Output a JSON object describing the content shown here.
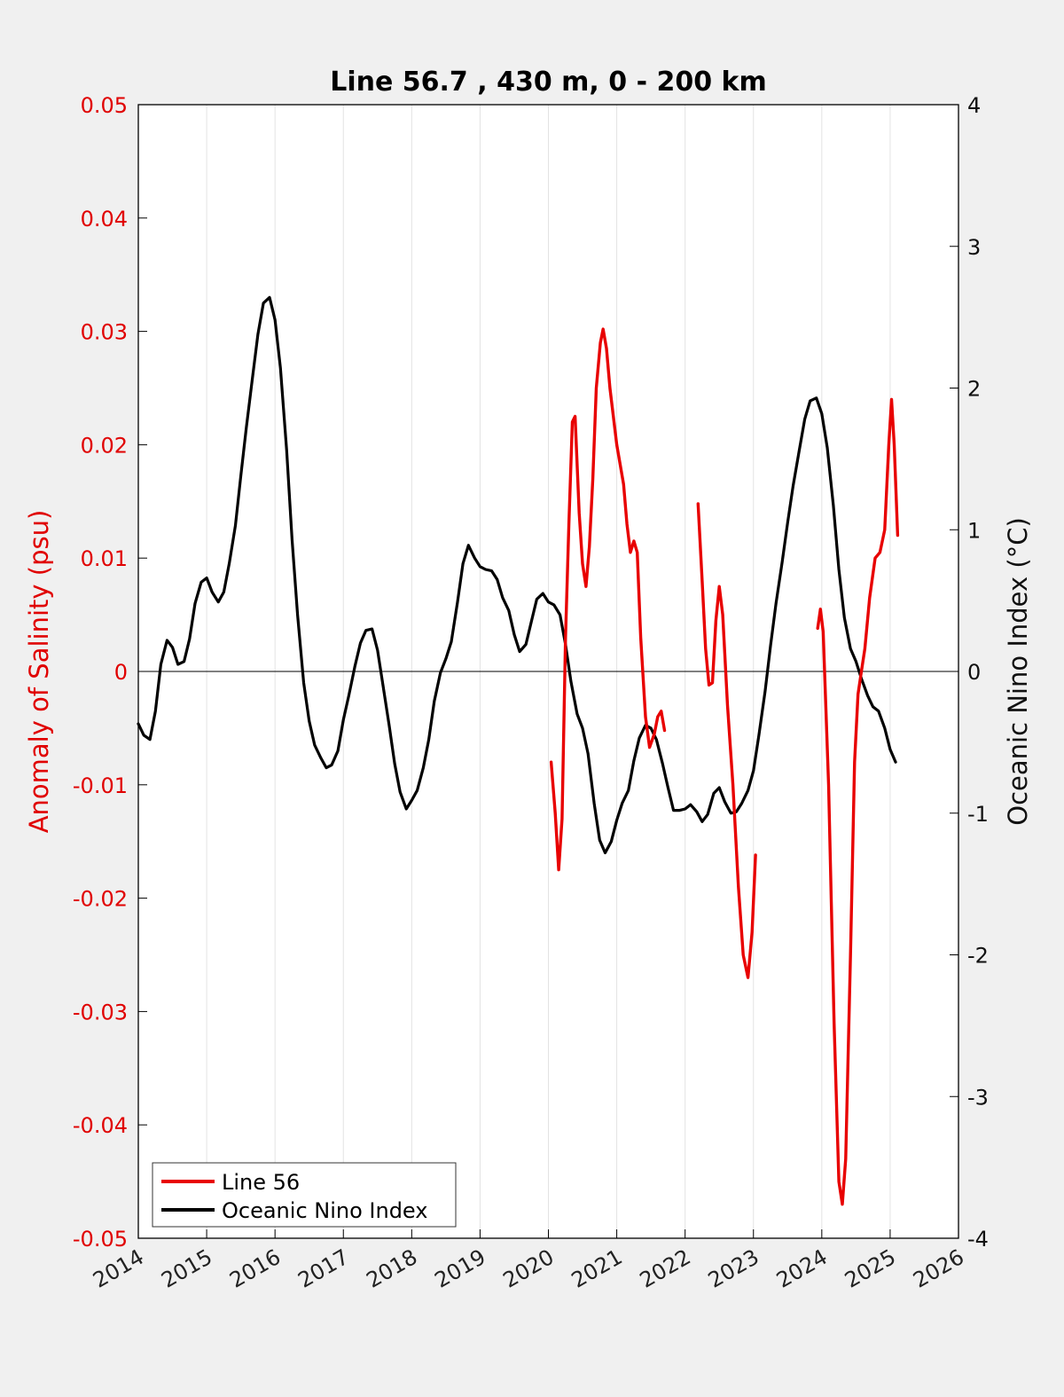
{
  "chart_data": {
    "type": "line",
    "title": "Line 56.7 , 430 m, 0 - 200 km",
    "xlabel": "",
    "ylabel": "Anomaly of Salinity (psu)",
    "y2label": "Oceanic Nino Index (°C)",
    "xlim": [
      2014,
      2026
    ],
    "ylim": [
      -0.05,
      0.05
    ],
    "y2lim": [
      -4,
      4
    ],
    "x_ticks": [
      "2014",
      "2015",
      "2016",
      "2017",
      "2018",
      "2019",
      "2020",
      "2021",
      "2022",
      "2023",
      "2024",
      "2025",
      "2026"
    ],
    "y_ticks": [
      "0.05",
      "0.04",
      "0.03",
      "0.02",
      "0.01",
      "0",
      "-0.01",
      "-0.02",
      "-0.03",
      "-0.04",
      "-0.05"
    ],
    "y2_ticks": [
      "4",
      "3",
      "2",
      "1",
      "0",
      "-1",
      "-2",
      "-3",
      "-4"
    ],
    "grid": "vertical",
    "legend_position": "bottom-left",
    "colors": {
      "line56": "#e80000",
      "oni": "#000000"
    },
    "series": [
      {
        "name": "Line 56",
        "axis": "left",
        "segments": [
          [
            [
              2020.04,
              -0.008
            ],
            [
              2020.1,
              -0.0125
            ],
            [
              2020.15,
              -0.0175
            ],
            [
              2020.2,
              -0.013
            ],
            [
              2020.25,
              0.003
            ],
            [
              2020.3,
              0.013
            ],
            [
              2020.35,
              0.022
            ],
            [
              2020.39,
              0.0225
            ],
            [
              2020.45,
              0.014
            ],
            [
              2020.5,
              0.0095
            ],
            [
              2020.55,
              0.0075
            ],
            [
              2020.6,
              0.011
            ],
            [
              2020.65,
              0.017
            ],
            [
              2020.7,
              0.025
            ],
            [
              2020.76,
              0.029
            ],
            [
              2020.8,
              0.0302
            ],
            [
              2020.85,
              0.0285
            ],
            [
              2020.9,
              0.025
            ],
            [
              2021.0,
              0.02
            ],
            [
              2021.1,
              0.0165
            ],
            [
              2021.15,
              0.013
            ],
            [
              2021.2,
              0.0105
            ],
            [
              2021.25,
              0.0115
            ],
            [
              2021.3,
              0.0105
            ],
            [
              2021.35,
              0.003
            ],
            [
              2021.42,
              -0.004
            ],
            [
              2021.48,
              -0.0067
            ],
            [
              2021.55,
              -0.0055
            ],
            [
              2021.6,
              -0.004
            ],
            [
              2021.65,
              -0.0035
            ],
            [
              2021.7,
              -0.0052
            ]
          ],
          [
            [
              2022.19,
              0.0148
            ],
            [
              2022.25,
              0.008
            ],
            [
              2022.3,
              0.002
            ],
            [
              2022.35,
              -0.0012
            ],
            [
              2022.4,
              -0.001
            ],
            [
              2022.45,
              0.0045
            ],
            [
              2022.5,
              0.0075
            ],
            [
              2022.55,
              0.005
            ],
            [
              2022.62,
              -0.003
            ],
            [
              2022.7,
              -0.01
            ],
            [
              2022.78,
              -0.019
            ],
            [
              2022.85,
              -0.025
            ],
            [
              2022.92,
              -0.027
            ],
            [
              2022.98,
              -0.023
            ],
            [
              2023.03,
              -0.0162
            ]
          ],
          [
            [
              2023.94,
              0.0038
            ],
            [
              2023.98,
              0.0055
            ],
            [
              2024.02,
              0.0035
            ],
            [
              2024.1,
              -0.01
            ],
            [
              2024.18,
              -0.031
            ],
            [
              2024.25,
              -0.045
            ],
            [
              2024.3,
              -0.047
            ],
            [
              2024.35,
              -0.043
            ],
            [
              2024.42,
              -0.025
            ],
            [
              2024.48,
              -0.008
            ],
            [
              2024.53,
              -0.002
            ],
            [
              2024.58,
              0.0
            ],
            [
              2024.63,
              0.002
            ],
            [
              2024.7,
              0.0065
            ],
            [
              2024.78,
              0.01
            ],
            [
              2024.85,
              0.0105
            ],
            [
              2024.92,
              0.0125
            ],
            [
              2024.98,
              0.02
            ],
            [
              2025.02,
              0.024
            ],
            [
              2025.06,
              0.02
            ],
            [
              2025.11,
              0.012
            ]
          ]
        ]
      },
      {
        "name": "Oceanic Nino Index",
        "axis": "right",
        "points": [
          [
            2014.0,
            -0.37
          ],
          [
            2014.08,
            -0.45
          ],
          [
            2014.17,
            -0.48
          ],
          [
            2014.25,
            -0.28
          ],
          [
            2014.33,
            0.05
          ],
          [
            2014.42,
            0.22
          ],
          [
            2014.5,
            0.17
          ],
          [
            2014.58,
            0.05
          ],
          [
            2014.67,
            0.07
          ],
          [
            2014.75,
            0.23
          ],
          [
            2014.83,
            0.48
          ],
          [
            2014.92,
            0.63
          ],
          [
            2015.0,
            0.66
          ],
          [
            2015.08,
            0.56
          ],
          [
            2015.17,
            0.49
          ],
          [
            2015.25,
            0.56
          ],
          [
            2015.33,
            0.76
          ],
          [
            2015.42,
            1.03
          ],
          [
            2015.5,
            1.38
          ],
          [
            2015.58,
            1.72
          ],
          [
            2015.67,
            2.07
          ],
          [
            2015.75,
            2.38
          ],
          [
            2015.83,
            2.6
          ],
          [
            2015.92,
            2.64
          ],
          [
            2016.0,
            2.48
          ],
          [
            2016.08,
            2.14
          ],
          [
            2016.17,
            1.56
          ],
          [
            2016.25,
            0.93
          ],
          [
            2016.33,
            0.4
          ],
          [
            2016.42,
            -0.08
          ],
          [
            2016.5,
            -0.35
          ],
          [
            2016.58,
            -0.52
          ],
          [
            2016.67,
            -0.61
          ],
          [
            2016.75,
            -0.68
          ],
          [
            2016.83,
            -0.66
          ],
          [
            2016.92,
            -0.56
          ],
          [
            2017.0,
            -0.34
          ],
          [
            2017.08,
            -0.17
          ],
          [
            2017.17,
            0.04
          ],
          [
            2017.25,
            0.2
          ],
          [
            2017.33,
            0.29
          ],
          [
            2017.42,
            0.3
          ],
          [
            2017.5,
            0.15
          ],
          [
            2017.58,
            -0.1
          ],
          [
            2017.67,
            -0.38
          ],
          [
            2017.75,
            -0.65
          ],
          [
            2017.83,
            -0.85
          ],
          [
            2017.92,
            -0.97
          ],
          [
            2018.0,
            -0.91
          ],
          [
            2018.08,
            -0.84
          ],
          [
            2018.17,
            -0.68
          ],
          [
            2018.25,
            -0.48
          ],
          [
            2018.33,
            -0.21
          ],
          [
            2018.42,
            -0.01
          ],
          [
            2018.5,
            0.09
          ],
          [
            2018.58,
            0.21
          ],
          [
            2018.67,
            0.49
          ],
          [
            2018.75,
            0.76
          ],
          [
            2018.83,
            0.89
          ],
          [
            2018.92,
            0.8
          ],
          [
            2019.0,
            0.74
          ],
          [
            2019.08,
            0.72
          ],
          [
            2019.17,
            0.71
          ],
          [
            2019.25,
            0.65
          ],
          [
            2019.33,
            0.52
          ],
          [
            2019.42,
            0.43
          ],
          [
            2019.5,
            0.26
          ],
          [
            2019.58,
            0.14
          ],
          [
            2019.67,
            0.19
          ],
          [
            2019.75,
            0.35
          ],
          [
            2019.83,
            0.51
          ],
          [
            2019.92,
            0.55
          ],
          [
            2020.0,
            0.49
          ],
          [
            2020.08,
            0.47
          ],
          [
            2020.17,
            0.4
          ],
          [
            2020.25,
            0.19
          ],
          [
            2020.33,
            -0.07
          ],
          [
            2020.42,
            -0.3
          ],
          [
            2020.5,
            -0.4
          ],
          [
            2020.58,
            -0.58
          ],
          [
            2020.67,
            -0.93
          ],
          [
            2020.75,
            -1.19
          ],
          [
            2020.83,
            -1.28
          ],
          [
            2020.92,
            -1.2
          ],
          [
            2021.0,
            -1.05
          ],
          [
            2021.08,
            -0.93
          ],
          [
            2021.17,
            -0.84
          ],
          [
            2021.25,
            -0.63
          ],
          [
            2021.33,
            -0.47
          ],
          [
            2021.42,
            -0.38
          ],
          [
            2021.5,
            -0.4
          ],
          [
            2021.58,
            -0.48
          ],
          [
            2021.67,
            -0.65
          ],
          [
            2021.75,
            -0.82
          ],
          [
            2021.83,
            -0.98
          ],
          [
            2021.92,
            -0.98
          ],
          [
            2022.0,
            -0.97
          ],
          [
            2022.08,
            -0.94
          ],
          [
            2022.17,
            -0.99
          ],
          [
            2022.25,
            -1.06
          ],
          [
            2022.33,
            -1.01
          ],
          [
            2022.42,
            -0.86
          ],
          [
            2022.5,
            -0.82
          ],
          [
            2022.58,
            -0.92
          ],
          [
            2022.67,
            -1.0
          ],
          [
            2022.75,
            -0.99
          ],
          [
            2022.83,
            -0.93
          ],
          [
            2022.92,
            -0.84
          ],
          [
            2023.0,
            -0.7
          ],
          [
            2023.08,
            -0.45
          ],
          [
            2023.17,
            -0.14
          ],
          [
            2023.25,
            0.18
          ],
          [
            2023.33,
            0.48
          ],
          [
            2023.42,
            0.77
          ],
          [
            2023.5,
            1.05
          ],
          [
            2023.58,
            1.31
          ],
          [
            2023.67,
            1.56
          ],
          [
            2023.75,
            1.78
          ],
          [
            2023.83,
            1.91
          ],
          [
            2023.92,
            1.93
          ],
          [
            2024.0,
            1.82
          ],
          [
            2024.08,
            1.58
          ],
          [
            2024.17,
            1.17
          ],
          [
            2024.25,
            0.72
          ],
          [
            2024.33,
            0.38
          ],
          [
            2024.42,
            0.16
          ],
          [
            2024.5,
            0.07
          ],
          [
            2024.58,
            -0.05
          ],
          [
            2024.67,
            -0.17
          ],
          [
            2024.75,
            -0.25
          ],
          [
            2024.83,
            -0.28
          ],
          [
            2024.92,
            -0.4
          ],
          [
            2025.0,
            -0.55
          ],
          [
            2025.08,
            -0.64
          ]
        ]
      }
    ]
  }
}
